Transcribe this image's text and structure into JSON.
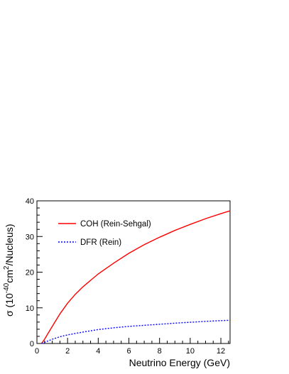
{
  "chart_data": {
    "type": "line",
    "xlabel": "Neutrino Energy (GeV)",
    "ylabel": {
      "prefix": "σ (10",
      "exp1": "-40",
      "mid": "cm",
      "exp2": "2",
      "suffix": "/Nucleus)"
    },
    "xlim": [
      0,
      12.6
    ],
    "ylim": [
      0,
      40
    ],
    "xticks": [
      0,
      2,
      4,
      6,
      8,
      10,
      12
    ],
    "yticks": [
      0,
      10,
      20,
      30,
      40
    ],
    "grid": false,
    "legend_position": "top-left",
    "series": [
      {
        "name": "COH (Rein-Sehgal)",
        "color": "#ff0000",
        "style": "solid",
        "x": [
          0.3,
          0.5,
          0.75,
          1.0,
          1.5,
          2.0,
          2.5,
          3.0,
          4.0,
          5.0,
          6.0,
          7.0,
          8.0,
          9.0,
          10.0,
          11.0,
          12.0,
          12.6
        ],
        "y": [
          0.0,
          1.2,
          3.0,
          4.8,
          8.3,
          11.3,
          13.8,
          15.9,
          19.5,
          22.5,
          25.3,
          27.7,
          29.8,
          31.7,
          33.4,
          35.0,
          36.4,
          37.2
        ]
      },
      {
        "name": "DFR (Rein)",
        "color": "#0000ff",
        "style": "dotted",
        "x": [
          0.3,
          0.5,
          0.75,
          1.0,
          1.5,
          2.0,
          3.0,
          4.0,
          5.0,
          6.0,
          7.0,
          8.0,
          9.0,
          10.0,
          11.0,
          12.0,
          12.6
        ],
        "y": [
          0.0,
          0.3,
          0.75,
          1.2,
          1.9,
          2.4,
          3.2,
          3.9,
          4.4,
          4.8,
          5.1,
          5.4,
          5.7,
          5.95,
          6.2,
          6.4,
          6.5
        ]
      }
    ]
  }
}
